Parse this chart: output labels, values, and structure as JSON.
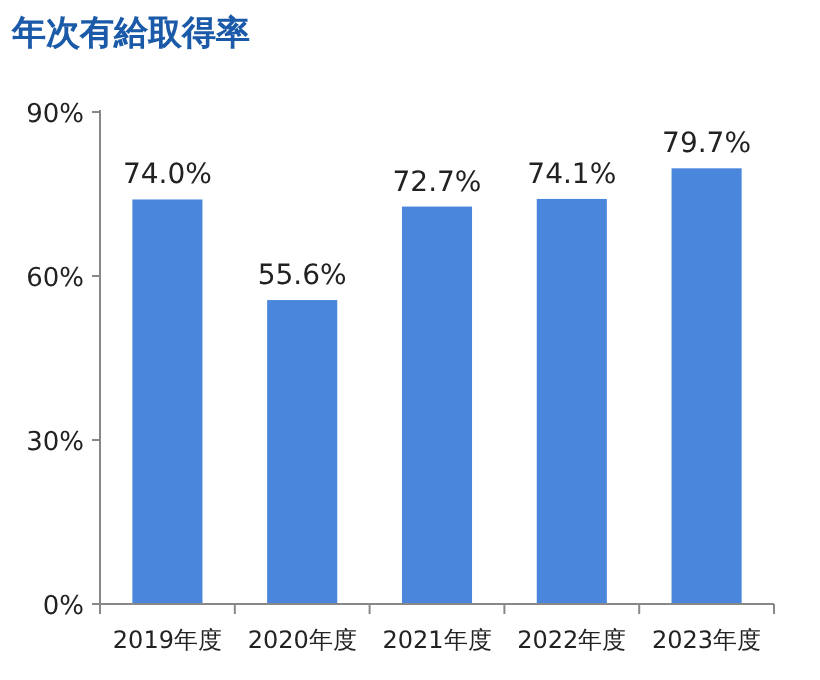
{
  "chart_data": {
    "type": "bar",
    "title": "年次有給取得率",
    "categories": [
      "2019年度",
      "2020年度",
      "2021年度",
      "2022年度",
      "2023年度"
    ],
    "values": [
      74.0,
      55.6,
      72.7,
      74.1,
      79.7
    ],
    "value_labels": [
      "74.0%",
      "55.6%",
      "72.7%",
      "74.1%",
      "79.7%"
    ],
    "color": "#4a86dc",
    "ylim": [
      0,
      90
    ],
    "yticks": [
      {
        "value": 0,
        "label": "0%"
      },
      {
        "value": 30,
        "label": "30%"
      },
      {
        "value": 60,
        "label": "60%"
      },
      {
        "value": 90,
        "label": "90%"
      }
    ],
    "grid": false,
    "legend": false
  }
}
